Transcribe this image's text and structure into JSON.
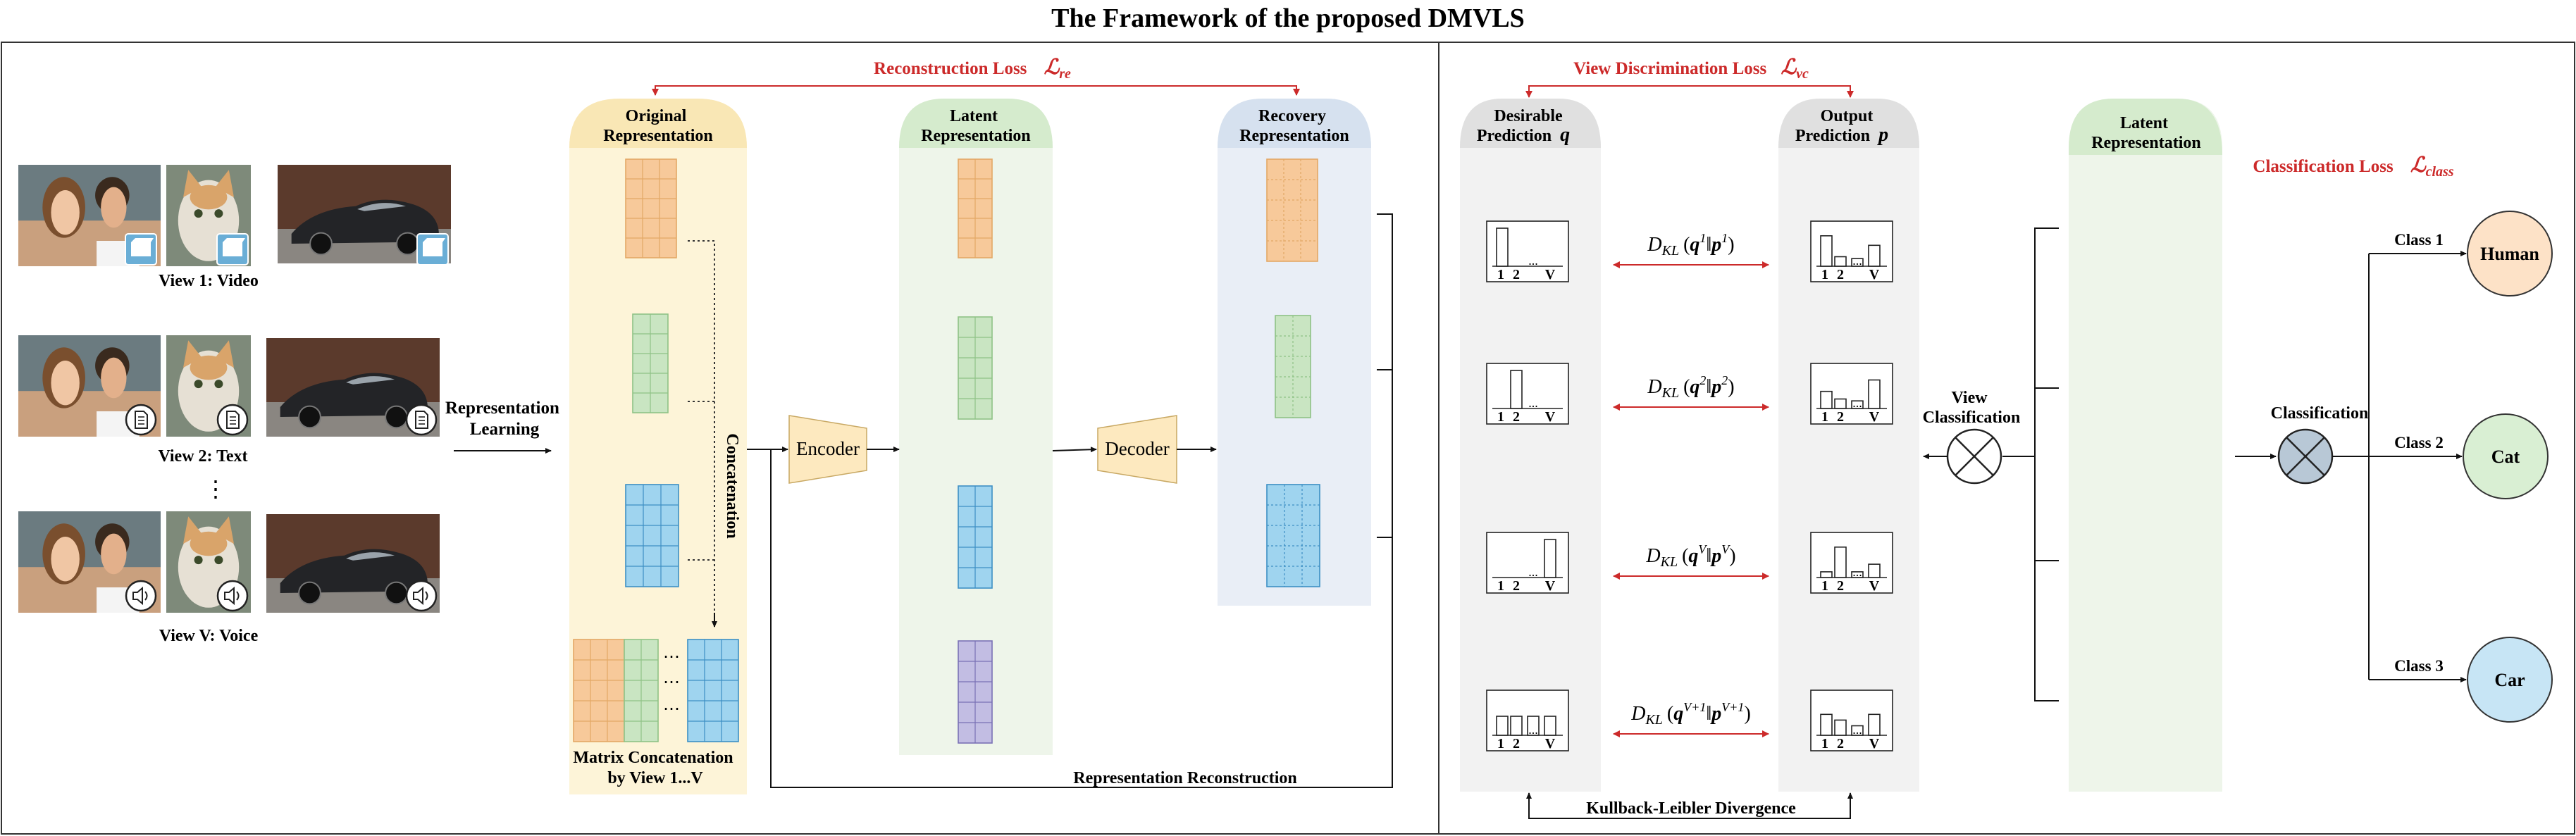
{
  "title": "The Framework of the proposed DMVLS",
  "colors": {
    "orange_col": "#fdf4d8",
    "green_col": "#eef5ea",
    "blue_col": "#e9eef6",
    "gray_col": "#f2f2f2",
    "red_arrow": "#cc2a2a",
    "orange_cell": "#f7c99a",
    "green_cell": "#c9e5c2",
    "blue_cell": "#9fd4ef",
    "purple_cell": "#c2bde3",
    "human_node": "#fde2c7",
    "cat_node": "#d9efd3",
    "car_node": "#c7e5f5",
    "encoder_fill": "#fde9bf"
  },
  "left": {
    "reconstruction_loss": {
      "label": "Reconstruction Loss",
      "symbol": "ℒ",
      "sub": "re"
    },
    "views": [
      {
        "label": "View 1: Video",
        "icon": "video-icon"
      },
      {
        "label": "View 2: Text",
        "icon": "document-icon"
      },
      {
        "label": "View V: Voice",
        "icon": "speaker-icon"
      }
    ],
    "views_ellipsis": "⋮",
    "representation_learning": [
      "Representation",
      "Learning"
    ],
    "original_representation": [
      "Original",
      "Representation"
    ],
    "latent_representation": [
      "Latent",
      "Representation"
    ],
    "recovery_representation": [
      "Recovery",
      "Representation"
    ],
    "concatenation": "Concatenation",
    "matrix_concatenation": [
      "Matrix Concatenation",
      "by View 1...V"
    ],
    "encoder": "Encoder",
    "decoder": "Decoder",
    "representation_reconstruction": "Representation Reconstruction",
    "col_ellipsis": "⋮",
    "row_ellipsis": "⋯"
  },
  "right": {
    "view_discrimination_loss": {
      "label": "View Discrimination Loss",
      "symbol": "ℒ",
      "sub": "vc"
    },
    "desirable_prediction": [
      "Desirable",
      "Prediction"
    ],
    "desirable_symbol": "q",
    "output_prediction": [
      "Output",
      "Prediction"
    ],
    "output_symbol": "p",
    "kl_labels": [
      {
        "sup": "1",
        "sup2": "1"
      },
      {
        "sup": "2",
        "sup2": "2"
      },
      {
        "sup": "V",
        "sup2": "V"
      },
      {
        "sup": "V+1",
        "sup2": "V+1"
      }
    ],
    "kl_prefix": "D",
    "kl_sub": "KL",
    "hist_ticks": [
      "1",
      "2",
      "V"
    ],
    "hist_dots": "...",
    "view_classification": [
      "View",
      "Classification"
    ],
    "latent_representation": [
      "Latent",
      "Representation"
    ],
    "classification_loss": {
      "label": "Classification Loss",
      "symbol": "ℒ",
      "sub": "class"
    },
    "classification": "Classification",
    "classes": [
      {
        "edge": "Class 1",
        "node": "Human"
      },
      {
        "edge": "Class 2",
        "node": "Cat"
      },
      {
        "edge": "Class 3",
        "node": "Car"
      }
    ],
    "kl_divergence": "Kullback-Leibler Divergence",
    "col_ellipsis": "⋮"
  }
}
